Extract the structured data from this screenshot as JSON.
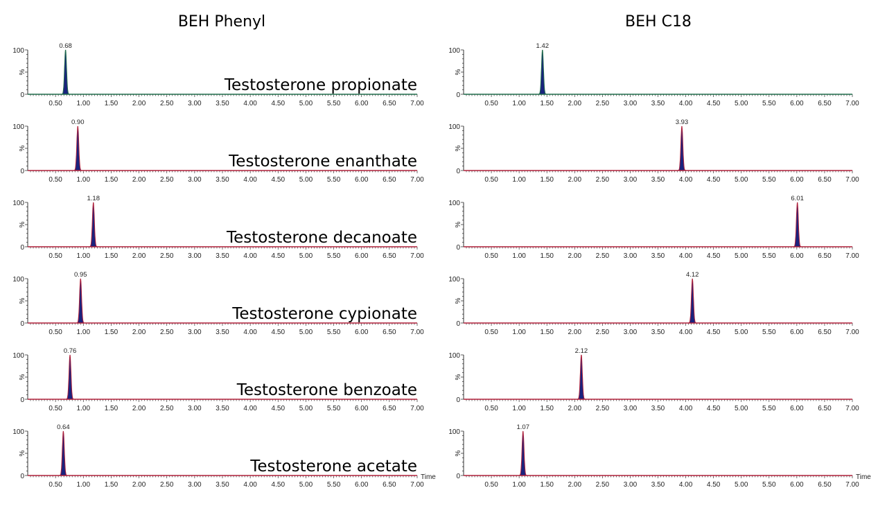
{
  "chart_data": [
    {
      "type": "line",
      "title": "BEH Phenyl",
      "xlabel": "Time",
      "ylabel": "%",
      "xlim": [
        0,
        7.0
      ],
      "ylim": [
        0,
        100
      ],
      "xticks": [
        "0.50",
        "1.00",
        "1.50",
        "2.00",
        "2.50",
        "3.00",
        "3.50",
        "4.00",
        "4.50",
        "5.00",
        "5.50",
        "6.00",
        "6.50",
        "7.00"
      ],
      "yticks": [
        "0",
        "100"
      ],
      "traces": [
        {
          "name": "Testosterone propionate",
          "peak_rt": 0.68,
          "peak_label": "0.68",
          "peak_intensity": 100,
          "color": "#1f6b4a"
        },
        {
          "name": "Testosterone enanthate",
          "peak_rt": 0.9,
          "peak_label": "0.90",
          "peak_intensity": 100,
          "color": "#b0203a"
        },
        {
          "name": "Testosterone decanoate",
          "peak_rt": 1.18,
          "peak_label": "1.18",
          "peak_intensity": 100,
          "color": "#b0203a"
        },
        {
          "name": "Testosterone cypionate",
          "peak_rt": 0.95,
          "peak_label": "0.95",
          "peak_intensity": 100,
          "color": "#b0203a"
        },
        {
          "name": "Testosterone benzoate",
          "peak_rt": 0.76,
          "peak_label": "0.76",
          "peak_intensity": 100,
          "color": "#b0203a"
        },
        {
          "name": "Testosterone acetate",
          "peak_rt": 0.64,
          "peak_label": "0.64",
          "peak_intensity": 100,
          "color": "#b0203a"
        }
      ]
    },
    {
      "type": "line",
      "title": "BEH C18",
      "xlabel": "Time",
      "ylabel": "%",
      "xlim": [
        0,
        7.0
      ],
      "ylim": [
        0,
        100
      ],
      "xticks": [
        "0.50",
        "1.00",
        "1.50",
        "2.00",
        "2.50",
        "3.00",
        "3.50",
        "4.00",
        "4.50",
        "5.00",
        "5.50",
        "6.00",
        "6.50",
        "7.00"
      ],
      "yticks": [
        "0",
        "100"
      ],
      "traces": [
        {
          "peak_rt": 1.42,
          "peak_label": "1.42",
          "peak_intensity": 100,
          "color": "#1f6b4a"
        },
        {
          "peak_rt": 3.93,
          "peak_label": "3.93",
          "peak_intensity": 100,
          "color": "#b0203a"
        },
        {
          "peak_rt": 6.01,
          "peak_label": "6.01",
          "peak_intensity": 100,
          "color": "#b0203a"
        },
        {
          "peak_rt": 4.12,
          "peak_label": "4.12",
          "peak_intensity": 100,
          "color": "#b0203a"
        },
        {
          "peak_rt": 2.12,
          "peak_label": "2.12",
          "peak_intensity": 100,
          "color": "#b0203a"
        },
        {
          "peak_rt": 1.07,
          "peak_label": "1.07",
          "peak_intensity": 100,
          "color": "#b0203a"
        }
      ]
    }
  ],
  "colors": {
    "peak_fill": "#1a237e"
  }
}
